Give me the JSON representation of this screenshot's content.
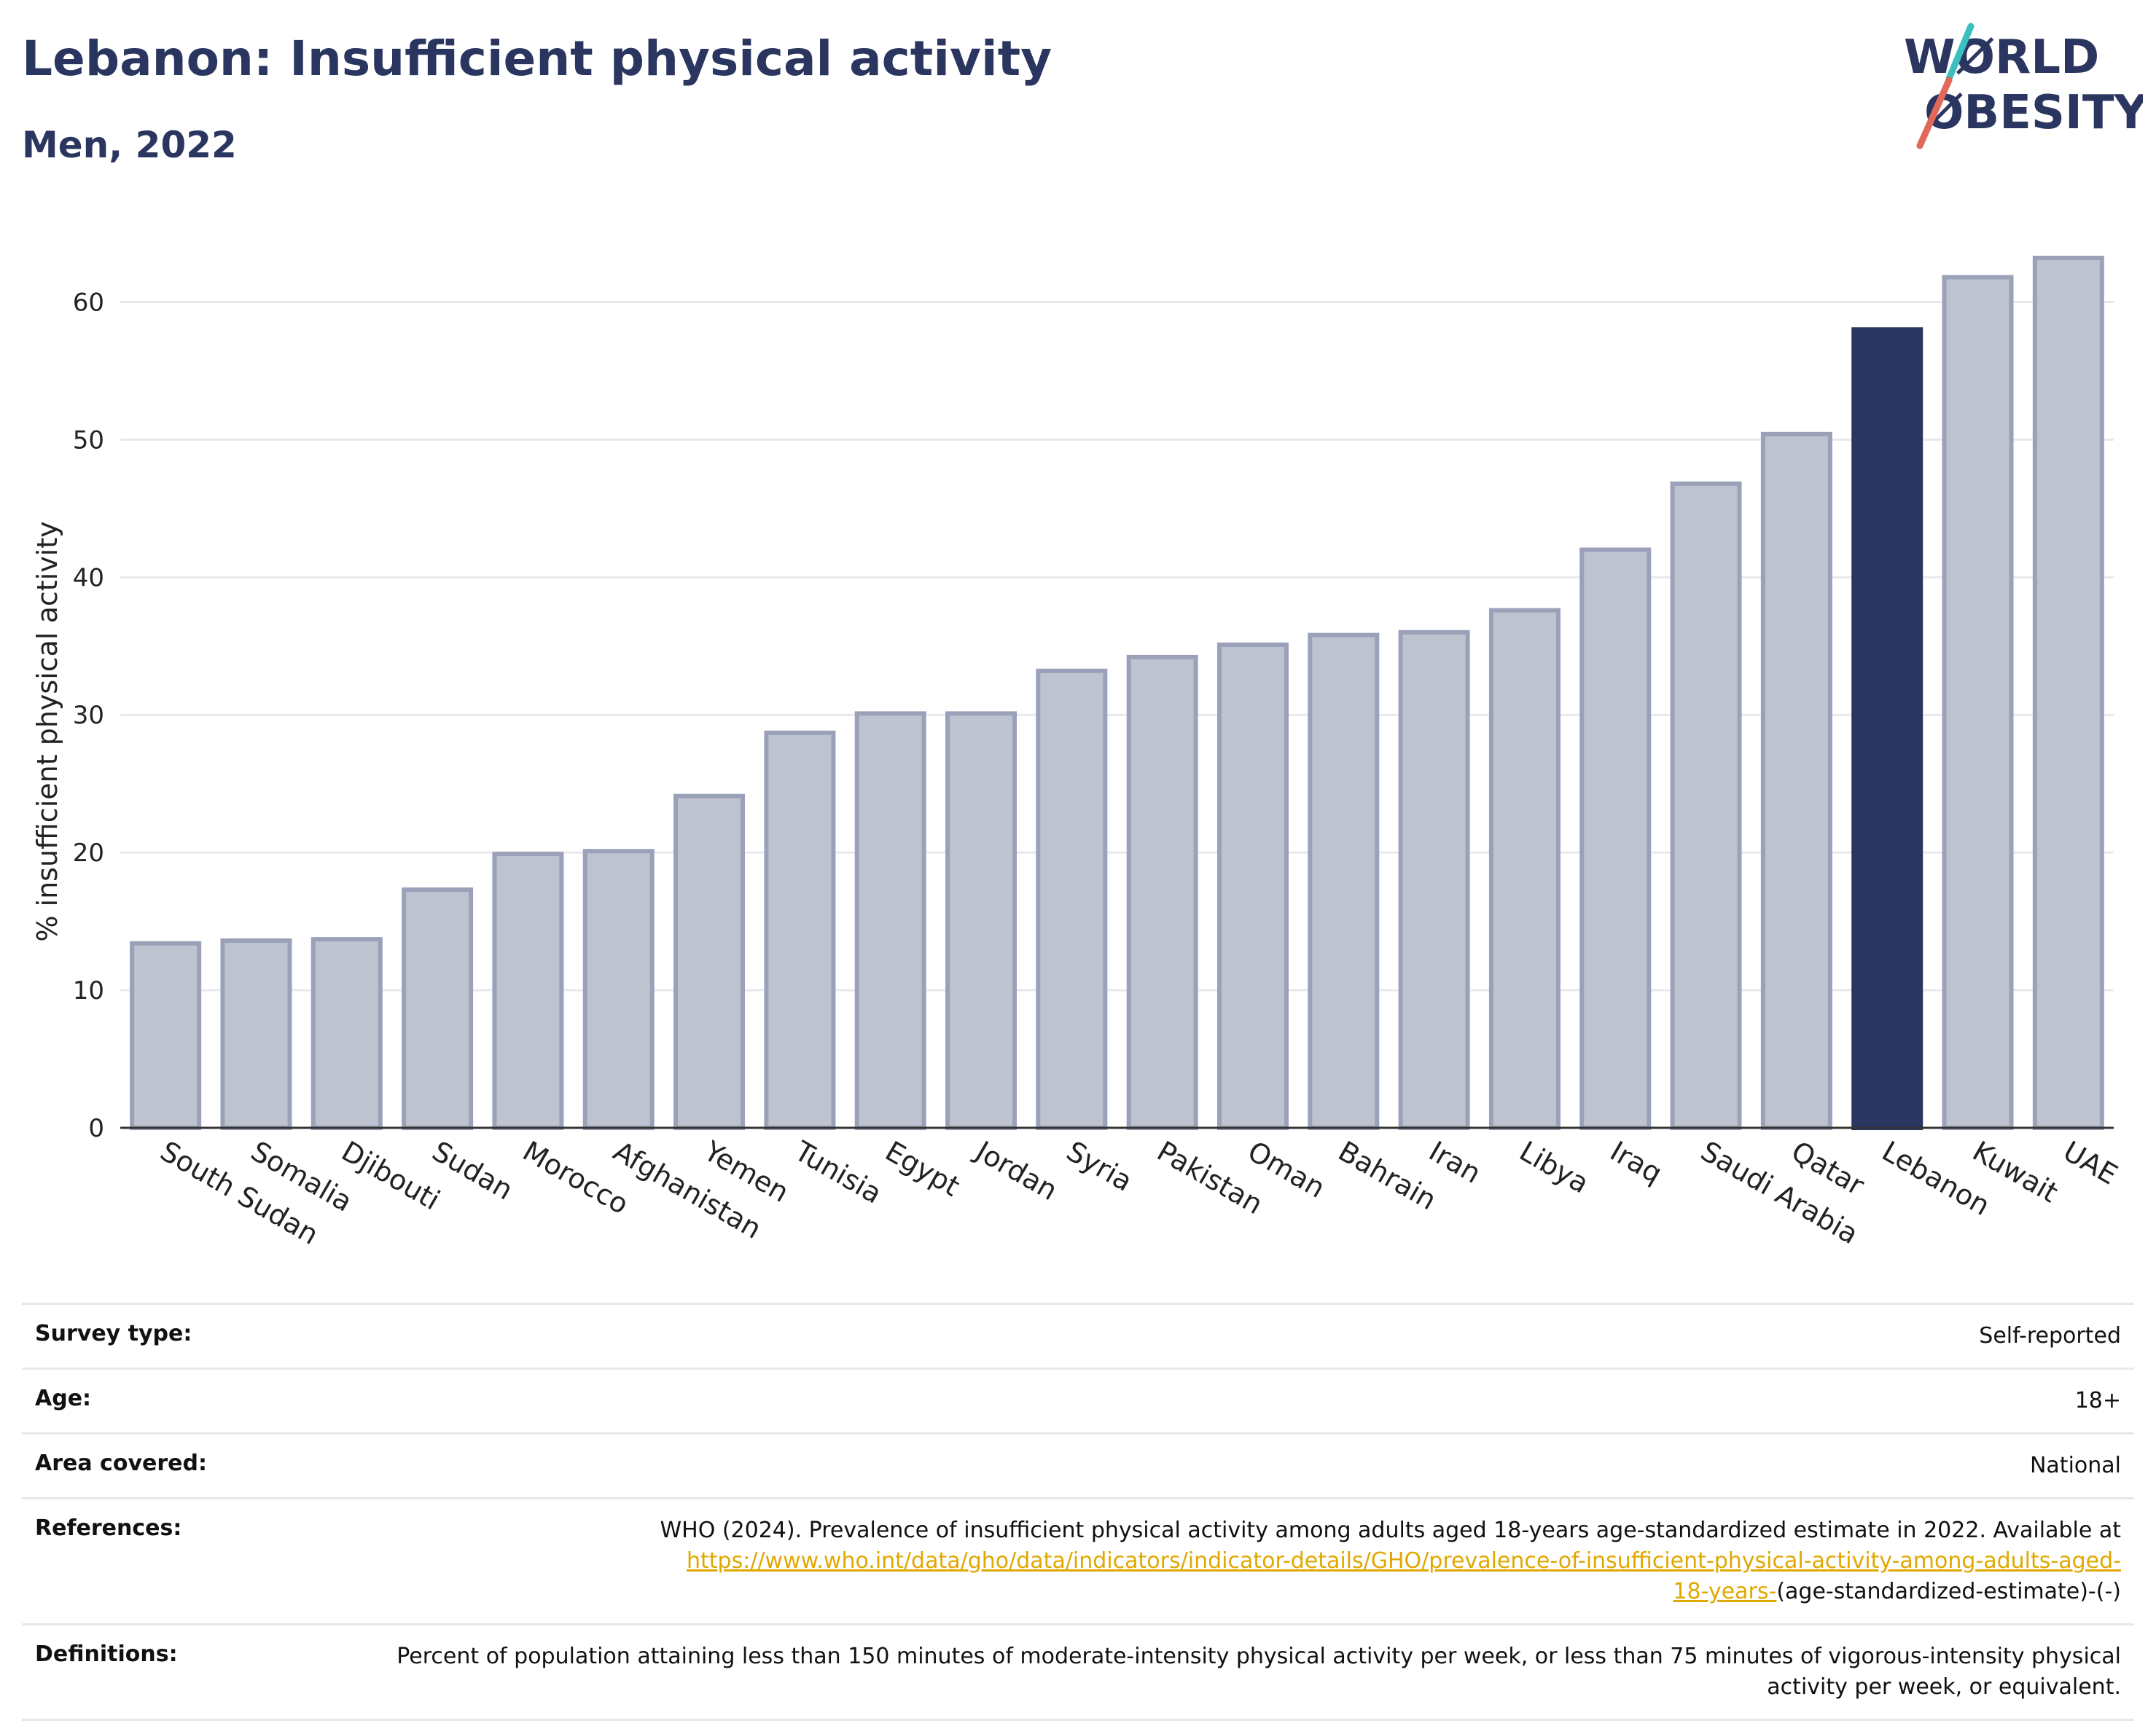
{
  "header": {
    "title": "Lebanon: Insufficient physical activity",
    "subtitle": "Men, 2022"
  },
  "logo": {
    "line1": "WØRLD",
    "line2": "ØBESITY",
    "colors": {
      "text": "#2a3560",
      "slash_top": "#3bbfbf",
      "slash_bottom": "#e2685a"
    }
  },
  "chart_data": {
    "type": "bar",
    "title": "",
    "xlabel": "",
    "ylabel": "% insufficient physical activity",
    "ylim": [
      0,
      65
    ],
    "yticks": [
      0,
      10,
      20,
      30,
      40,
      50,
      60
    ],
    "grid": true,
    "highlight": "Lebanon",
    "colors": {
      "bar": "#bfc3d0",
      "bar_edge": "#9aa1b8",
      "highlight": "#2a3560"
    },
    "categories": [
      "South Sudan",
      "Somalia",
      "Djibouti",
      "Sudan",
      "Morocco",
      "Afghanistan",
      "Yemen",
      "Tunisia",
      "Egypt",
      "Jordan",
      "Syria",
      "Pakistan",
      "Oman",
      "Bahrain",
      "Iran",
      "Libya",
      "Iraq",
      "Saudi Arabia",
      "Qatar",
      "Lebanon",
      "Kuwait",
      "UAE"
    ],
    "values": [
      13.4,
      13.6,
      13.7,
      17.3,
      19.9,
      20.1,
      24.1,
      28.7,
      30.1,
      30.1,
      33.2,
      34.2,
      35.1,
      35.8,
      36.0,
      37.6,
      42.0,
      46.8,
      50.4,
      58.0,
      61.8,
      63.2
    ]
  },
  "meta": {
    "survey_type_label": "Survey type:",
    "survey_type_value": "Self-reported",
    "age_label": "Age:",
    "age_value": "18+",
    "area_label": "Area covered:",
    "area_value": "National",
    "references_label": "References:",
    "references_text": "WHO (2024). Prevalence of insufficient physical activity among adults aged 18-years age-standardized estimate in 2022. Available at",
    "references_link_line1": "https://www.who.int/data/gho/data/indicators/indicator-details/GHO/prevalence-of-insufficient-physical-activity-among-adults-aged-",
    "references_link_line2": "18-years-",
    "references_suffix": "(age-standardized-estimate)-(-)",
    "definitions_label": "Definitions:",
    "definitions_value": "Percent of population attaining less than 150 minutes of moderate-intensity physical activity per week, or less than 75 minutes of vigorous-intensity physical activity per week, or equivalent."
  }
}
